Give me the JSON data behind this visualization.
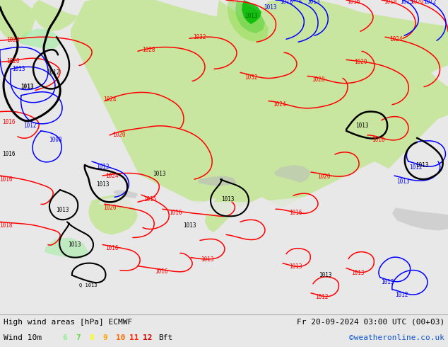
{
  "title_left": "High wind areas [hPa] ECMWF",
  "title_right": "Fr 20-09-2024 03:00 UTC (00+03)",
  "subtitle_left": "Wind 10m",
  "legend_numbers": [
    "6",
    "7",
    "8",
    "9",
    "10",
    "11",
    "12"
  ],
  "legend_colors": [
    "#90EE90",
    "#66DD44",
    "#FFFF00",
    "#FFA500",
    "#FF6600",
    "#FF2200",
    "#CC0000"
  ],
  "legend_suffix": "Bft",
  "credit": "©weatheronline.co.uk",
  "bg_land_green": "#c8e6a0",
  "bg_land_green2": "#b8dc8c",
  "bg_sea_white": "#f0f0f0",
  "bg_highland_gray": "#b8b8b8",
  "wind_green_dark": "#00bb00",
  "wind_green_light": "#88dd44",
  "wind_green_med": "#44cc44",
  "bottom_bar_color": "#e8e8e8",
  "figsize": [
    6.34,
    4.9
  ],
  "dpi": 100
}
